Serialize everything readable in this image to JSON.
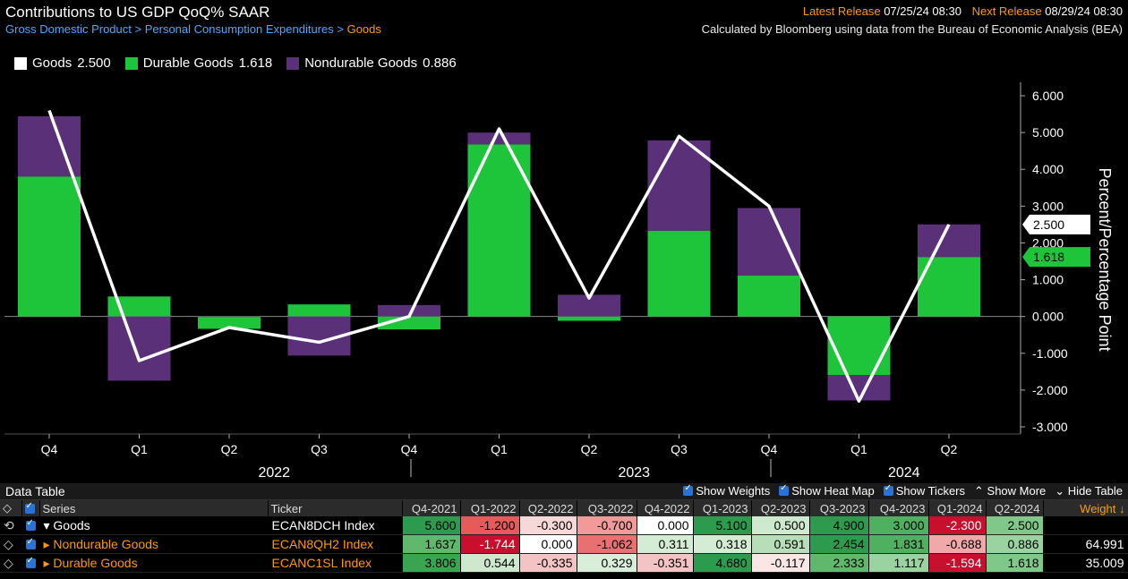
{
  "header": {
    "title": "Contributions to US GDP QoQ% SAAR",
    "breadcrumb": [
      "Gross Domestic Product",
      "Personal Consumption Expenditures",
      "Goods"
    ],
    "latest_release_label": "Latest Release",
    "latest_release": "07/25/24 08:30",
    "next_release_label": "Next Release",
    "next_release": "08/29/24 08:30",
    "calc_note": "Calculated by Bloomberg using data from the Bureau of Economic Analysis (BEA)"
  },
  "legend": [
    {
      "name": "Goods",
      "value": "2.500",
      "color": "#ffffff"
    },
    {
      "name": "Durable Goods",
      "value": "1.618",
      "color": "#1ec43a"
    },
    {
      "name": "Nondurable Goods",
      "value": "0.886",
      "color": "#5a3178"
    }
  ],
  "chart_data": {
    "type": "bar",
    "stacked": true,
    "categories": [
      "Q4",
      "Q1",
      "Q2",
      "Q3",
      "Q4",
      "Q1",
      "Q2",
      "Q3",
      "Q4",
      "Q1",
      "Q2"
    ],
    "year_labels": [
      {
        "label": "2022",
        "at": 2.5
      },
      {
        "label": "2023",
        "at": 6.5
      },
      {
        "label": "2024",
        "at": 9.5
      }
    ],
    "series": [
      {
        "name": "Durable Goods",
        "kind": "bar",
        "color": "#1ec43a",
        "values": [
          3.806,
          0.544,
          -0.335,
          0.329,
          -0.351,
          4.68,
          -0.117,
          2.333,
          1.117,
          -1.594,
          1.618
        ]
      },
      {
        "name": "Nondurable Goods",
        "kind": "bar",
        "color": "#5a3178",
        "values": [
          1.637,
          -1.744,
          0.0,
          -1.062,
          0.311,
          0.318,
          0.591,
          2.454,
          1.831,
          -0.688,
          0.886
        ]
      },
      {
        "name": "Goods",
        "kind": "line",
        "color": "#ffffff",
        "values": [
          5.6,
          -1.2,
          -0.3,
          -0.7,
          0.0,
          5.1,
          0.5,
          4.9,
          3.0,
          -2.3,
          2.5
        ]
      }
    ],
    "ylabel": "Percent/Percentage Point",
    "ylim": [
      -3,
      6
    ],
    "yticks": [
      "6.000",
      "5.000",
      "4.000",
      "3.000",
      "2.000",
      "1.000",
      "0.000",
      "-1.000",
      "-2.000",
      "-3.000"
    ],
    "last_value_tags": [
      {
        "value": "2.500",
        "color": "#ffffff",
        "text_color": "#000000"
      },
      {
        "value": "1.618",
        "color": "#1ec43a",
        "text_color": "#000000"
      }
    ]
  },
  "data_table": {
    "title": "Data Table",
    "options": [
      "Show Weights",
      "Show Heat Map",
      "Show Tickers",
      "Show More",
      "Hide Table"
    ],
    "columns": [
      "Series",
      "Ticker",
      "Q4-2021",
      "Q1-2022",
      "Q2-2022",
      "Q3-2022",
      "Q4-2022",
      "Q1-2023",
      "Q2-2023",
      "Q3-2023",
      "Q4-2023",
      "Q1-2024",
      "Q2-2024",
      "Weight ↓"
    ],
    "rows": [
      {
        "series": "Goods",
        "ticker": "ECAN8DCH Index",
        "values": [
          "5.600",
          "-1.200",
          "-0.300",
          "-0.700",
          "0.000",
          "5.100",
          "0.500",
          "4.900",
          "3.000",
          "-2.300",
          "2.500"
        ],
        "weight": "",
        "colors": [
          "#2d9b4d",
          "#e85a5a",
          "#f7d8d8",
          "#f09a9a",
          "#ffffff",
          "#2d9b4d",
          "#cfe9cf",
          "#2d9b4d",
          "#4fb05f",
          "#c8102e",
          "#7fc88a"
        ]
      },
      {
        "series": "Nondurable Goods",
        "ticker": "ECAN8QH2 Index",
        "values": [
          "1.637",
          "-1.744",
          "0.000",
          "-1.062",
          "0.311",
          "0.318",
          "0.591",
          "2.454",
          "1.831",
          "-0.688",
          "0.886"
        ],
        "weight": "64.991",
        "colors": [
          "#5fb86c",
          "#c8102e",
          "#ffffff",
          "#e87070",
          "#d4ecd4",
          "#d4ecd4",
          "#b7deb9",
          "#2d9b4d",
          "#4fb05f",
          "#f0a8a8",
          "#9ad3a0"
        ]
      },
      {
        "series": "Durable Goods",
        "ticker": "ECANC1SL Index",
        "values": [
          "3.806",
          "0.544",
          "-0.335",
          "0.329",
          "-0.351",
          "4.680",
          "-0.117",
          "2.333",
          "1.117",
          "-1.594",
          "1.618"
        ],
        "weight": "35.009",
        "colors": [
          "#3aa550",
          "#cde8cd",
          "#f4c4c4",
          "#d9eed9",
          "#f4c4c4",
          "#2d9b4d",
          "#fbe6e6",
          "#5fb86c",
          "#9ad3a0",
          "#c8102e",
          "#7fc88a"
        ]
      }
    ]
  }
}
